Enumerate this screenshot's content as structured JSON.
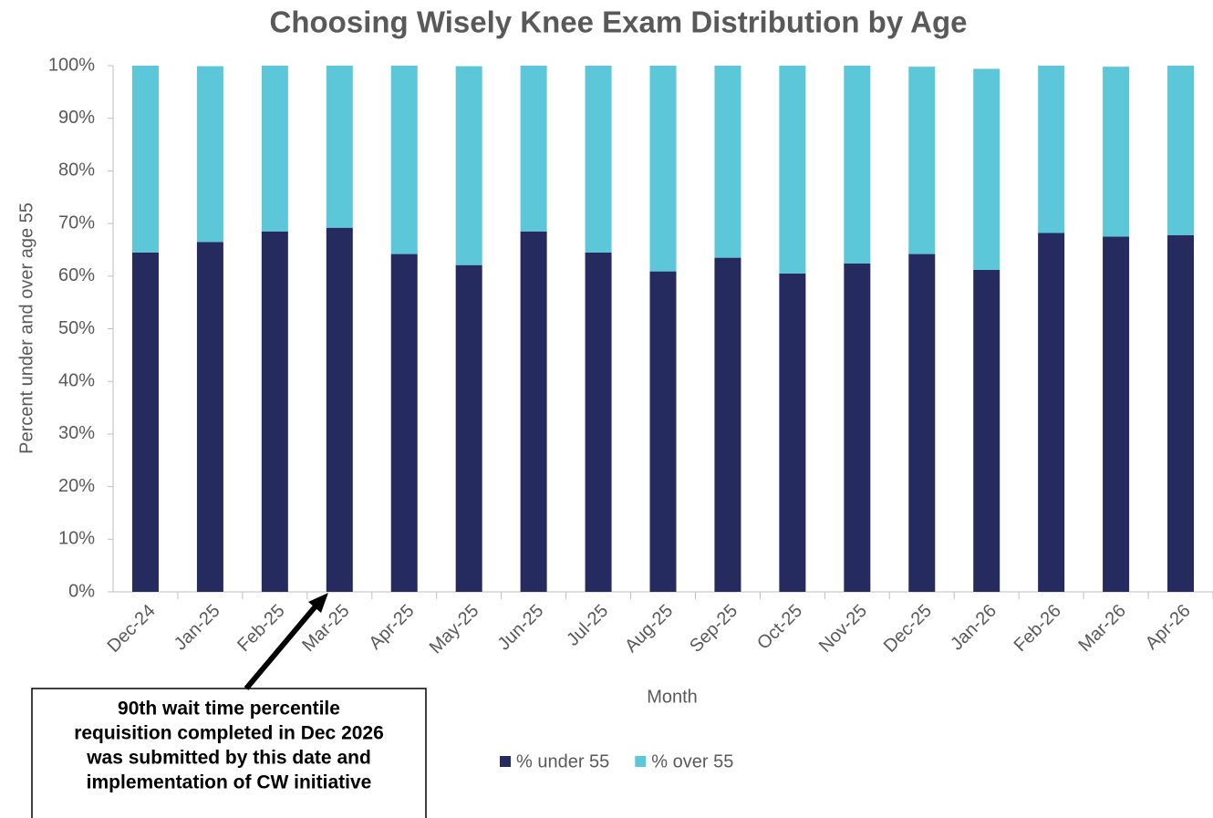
{
  "chart_data": {
    "type": "stacked_bar",
    "title": "Choosing Wisely Knee Exam Distribution by Age",
    "x_label": "Month",
    "y_label": "Percent under and over age 55",
    "categories": [
      "Dec-24",
      "Jan-25",
      "Feb-25",
      "Mar-25",
      "Apr-25",
      "May-25",
      "Jun-25",
      "Jul-25",
      "Aug-25",
      "Sep-25",
      "Oct-25",
      "Nov-25",
      "Dec-25",
      "Jan-26",
      "Feb-26",
      "Mar-26",
      "Apr-26"
    ],
    "series": [
      {
        "name": "% under 55",
        "color": "#252b5e",
        "values": [
          64.5,
          66.5,
          68.5,
          69.2,
          64.2,
          62.1,
          68.5,
          64.5,
          60.9,
          63.5,
          60.5,
          62.4,
          64.2,
          61.2,
          68.2,
          67.5,
          67.8
        ]
      },
      {
        "name": "% over 55",
        "color": "#5bc7d8",
        "values": [
          35.5,
          33.4,
          31.5,
          30.8,
          35.8,
          37.8,
          31.5,
          35.5,
          39.1,
          36.5,
          39.5,
          37.6,
          35.6,
          38.2,
          31.8,
          32.3,
          32.2
        ]
      }
    ],
    "ylim": [
      0,
      100
    ],
    "yticks": [
      {
        "value": 0,
        "label": "0%"
      },
      {
        "value": 10,
        "label": "10%"
      },
      {
        "value": 20,
        "label": "20%"
      },
      {
        "value": 30,
        "label": "30%"
      },
      {
        "value": 40,
        "label": "40%"
      },
      {
        "value": 50,
        "label": "50%"
      },
      {
        "value": 60,
        "label": "60%"
      },
      {
        "value": 70,
        "label": "70%"
      },
      {
        "value": 80,
        "label": "80%"
      },
      {
        "value": 90,
        "label": "90%"
      },
      {
        "value": 100,
        "label": "100%"
      }
    ],
    "legend": "bottom",
    "annotation": [
      "90th wait time percentile",
      "requisition completed in Dec 2026",
      "was submitted by this date and",
      "implementation of CW initiative"
    ]
  }
}
